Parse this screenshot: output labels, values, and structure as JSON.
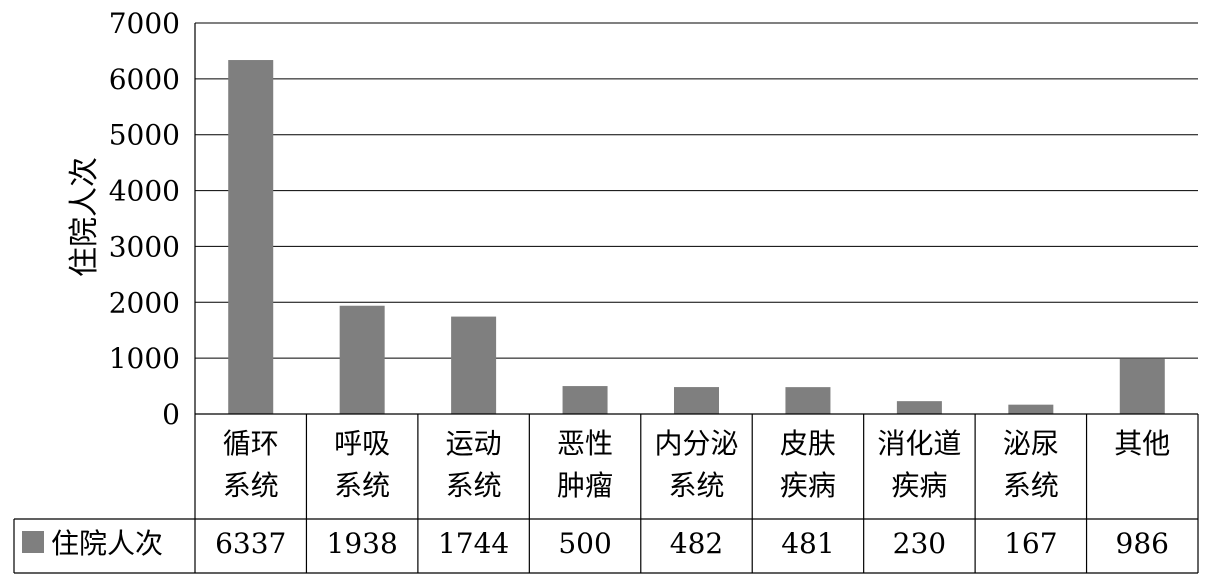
{
  "chart_data": {
    "type": "bar",
    "title": "",
    "xlabel": "",
    "ylabel": "住院人次",
    "ylim": [
      0,
      7000
    ],
    "yticks": [
      0,
      1000,
      2000,
      3000,
      4000,
      5000,
      6000,
      7000
    ],
    "grid": true,
    "legend_placement": "left of data table",
    "categories": [
      [
        "循环",
        "系统"
      ],
      [
        "呼吸",
        "系统"
      ],
      [
        "运动",
        "系统"
      ],
      [
        "恶性",
        "肿瘤"
      ],
      [
        "内分泌",
        "系统"
      ],
      [
        "皮肤",
        "疾病"
      ],
      [
        "消化道",
        "疾病"
      ],
      [
        "泌尿",
        "系统"
      ],
      [
        "其他"
      ]
    ],
    "series": [
      {
        "name": "住院人次",
        "color": "#7f7f7f",
        "values": [
          6337,
          1938,
          1744,
          500,
          482,
          481,
          230,
          167,
          986
        ]
      }
    ]
  }
}
